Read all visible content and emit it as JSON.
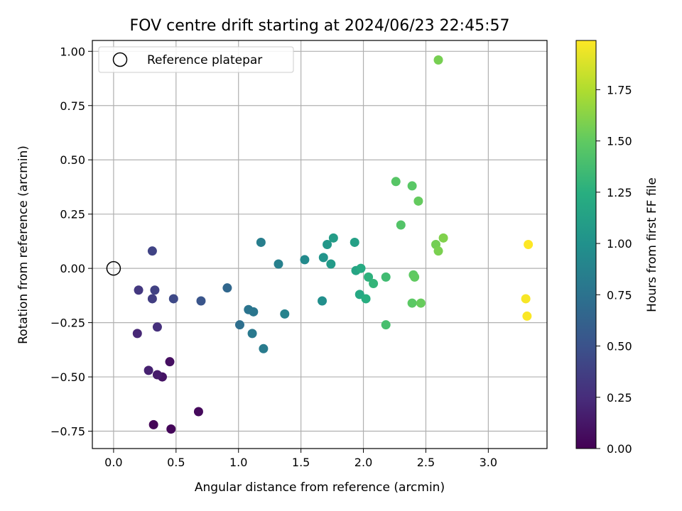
{
  "chart_data": {
    "type": "scatter",
    "title": "FOV centre drift starting at 2024/06/23 22:45:57",
    "xlabel": "Angular distance from reference (arcmin)",
    "ylabel": "Rotation from reference (arcmin)",
    "xlim": [
      -0.17,
      3.47
    ],
    "ylim": [
      -0.83,
      1.05
    ],
    "xticks": [
      "0.0",
      "0.5",
      "1.0",
      "1.5",
      "2.0",
      "2.5",
      "3.0"
    ],
    "yticks": [
      "−0.75",
      "−0.50",
      "−0.25",
      "0.00",
      "0.25",
      "0.50",
      "0.75",
      "1.00"
    ],
    "grid": true,
    "legend": {
      "placement": "top-left",
      "entries": [
        {
          "label": "Reference platepar",
          "marker": "open-circle"
        }
      ]
    },
    "reference_point": {
      "x": 0.0,
      "y": 0.0
    },
    "colorbar": {
      "label": "Hours from first FF file",
      "colormap": "viridis",
      "range": [
        0.0,
        1.99
      ],
      "ticks": [
        "0.00",
        "0.25",
        "0.50",
        "0.75",
        "1.00",
        "1.25",
        "1.50",
        "1.75"
      ]
    },
    "points": [
      {
        "x": 0.32,
        "y": -0.72,
        "hours": 0.02
      },
      {
        "x": 0.46,
        "y": -0.74,
        "hours": 0.03
      },
      {
        "x": 0.68,
        "y": -0.66,
        "hours": 0.05
      },
      {
        "x": 0.45,
        "y": -0.43,
        "hours": 0.08
      },
      {
        "x": 0.39,
        "y": -0.5,
        "hours": 0.1
      },
      {
        "x": 0.35,
        "y": -0.49,
        "hours": 0.14
      },
      {
        "x": 0.28,
        "y": -0.47,
        "hours": 0.18
      },
      {
        "x": 0.19,
        "y": -0.3,
        "hours": 0.22
      },
      {
        "x": 0.35,
        "y": -0.27,
        "hours": 0.27
      },
      {
        "x": 0.2,
        "y": -0.1,
        "hours": 0.32
      },
      {
        "x": 0.31,
        "y": -0.14,
        "hours": 0.36
      },
      {
        "x": 0.33,
        "y": -0.1,
        "hours": 0.38
      },
      {
        "x": 0.31,
        "y": 0.08,
        "hours": 0.4
      },
      {
        "x": 0.48,
        "y": -0.14,
        "hours": 0.44
      },
      {
        "x": 0.7,
        "y": -0.15,
        "hours": 0.52
      },
      {
        "x": 0.91,
        "y": -0.09,
        "hours": 0.66
      },
      {
        "x": 1.01,
        "y": -0.26,
        "hours": 0.72
      },
      {
        "x": 1.08,
        "y": -0.19,
        "hours": 0.76
      },
      {
        "x": 1.12,
        "y": -0.2,
        "hours": 0.78
      },
      {
        "x": 1.11,
        "y": -0.3,
        "hours": 0.8
      },
      {
        "x": 1.2,
        "y": -0.37,
        "hours": 0.82
      },
      {
        "x": 1.18,
        "y": 0.12,
        "hours": 0.84
      },
      {
        "x": 1.32,
        "y": 0.02,
        "hours": 0.86
      },
      {
        "x": 1.37,
        "y": -0.21,
        "hours": 0.88
      },
      {
        "x": 1.53,
        "y": 0.04,
        "hours": 0.94
      },
      {
        "x": 1.67,
        "y": -0.15,
        "hours": 0.98
      },
      {
        "x": 1.68,
        "y": 0.05,
        "hours": 1.02
      },
      {
        "x": 1.71,
        "y": 0.11,
        "hours": 1.05
      },
      {
        "x": 1.74,
        "y": 0.02,
        "hours": 1.07
      },
      {
        "x": 1.76,
        "y": 0.14,
        "hours": 1.09
      },
      {
        "x": 1.93,
        "y": 0.12,
        "hours": 1.12
      },
      {
        "x": 1.94,
        "y": -0.01,
        "hours": 1.16
      },
      {
        "x": 1.97,
        "y": -0.12,
        "hours": 1.19
      },
      {
        "x": 1.98,
        "y": 0.0,
        "hours": 1.21
      },
      {
        "x": 2.02,
        "y": -0.14,
        "hours": 1.24
      },
      {
        "x": 2.04,
        "y": -0.04,
        "hours": 1.27
      },
      {
        "x": 2.08,
        "y": -0.07,
        "hours": 1.3
      },
      {
        "x": 2.18,
        "y": -0.04,
        "hours": 1.36
      },
      {
        "x": 2.18,
        "y": -0.26,
        "hours": 1.39
      },
      {
        "x": 2.26,
        "y": 0.4,
        "hours": 1.46
      },
      {
        "x": 2.3,
        "y": 0.2,
        "hours": 1.44
      },
      {
        "x": 2.39,
        "y": 0.38,
        "hours": 1.47
      },
      {
        "x": 2.39,
        "y": -0.16,
        "hours": 1.48
      },
      {
        "x": 2.4,
        "y": -0.03,
        "hours": 1.49
      },
      {
        "x": 2.41,
        "y": -0.04,
        "hours": 1.5
      },
      {
        "x": 2.44,
        "y": 0.31,
        "hours": 1.51
      },
      {
        "x": 2.46,
        "y": -0.16,
        "hours": 1.52
      },
      {
        "x": 2.58,
        "y": 0.11,
        "hours": 1.56
      },
      {
        "x": 2.6,
        "y": 0.08,
        "hours": 1.58
      },
      {
        "x": 2.6,
        "y": 0.96,
        "hours": 1.57
      },
      {
        "x": 2.64,
        "y": 0.14,
        "hours": 1.6
      },
      {
        "x": 3.3,
        "y": -0.14,
        "hours": 1.97
      },
      {
        "x": 3.31,
        "y": -0.22,
        "hours": 1.98
      },
      {
        "x": 3.32,
        "y": 0.11,
        "hours": 1.99
      }
    ]
  }
}
